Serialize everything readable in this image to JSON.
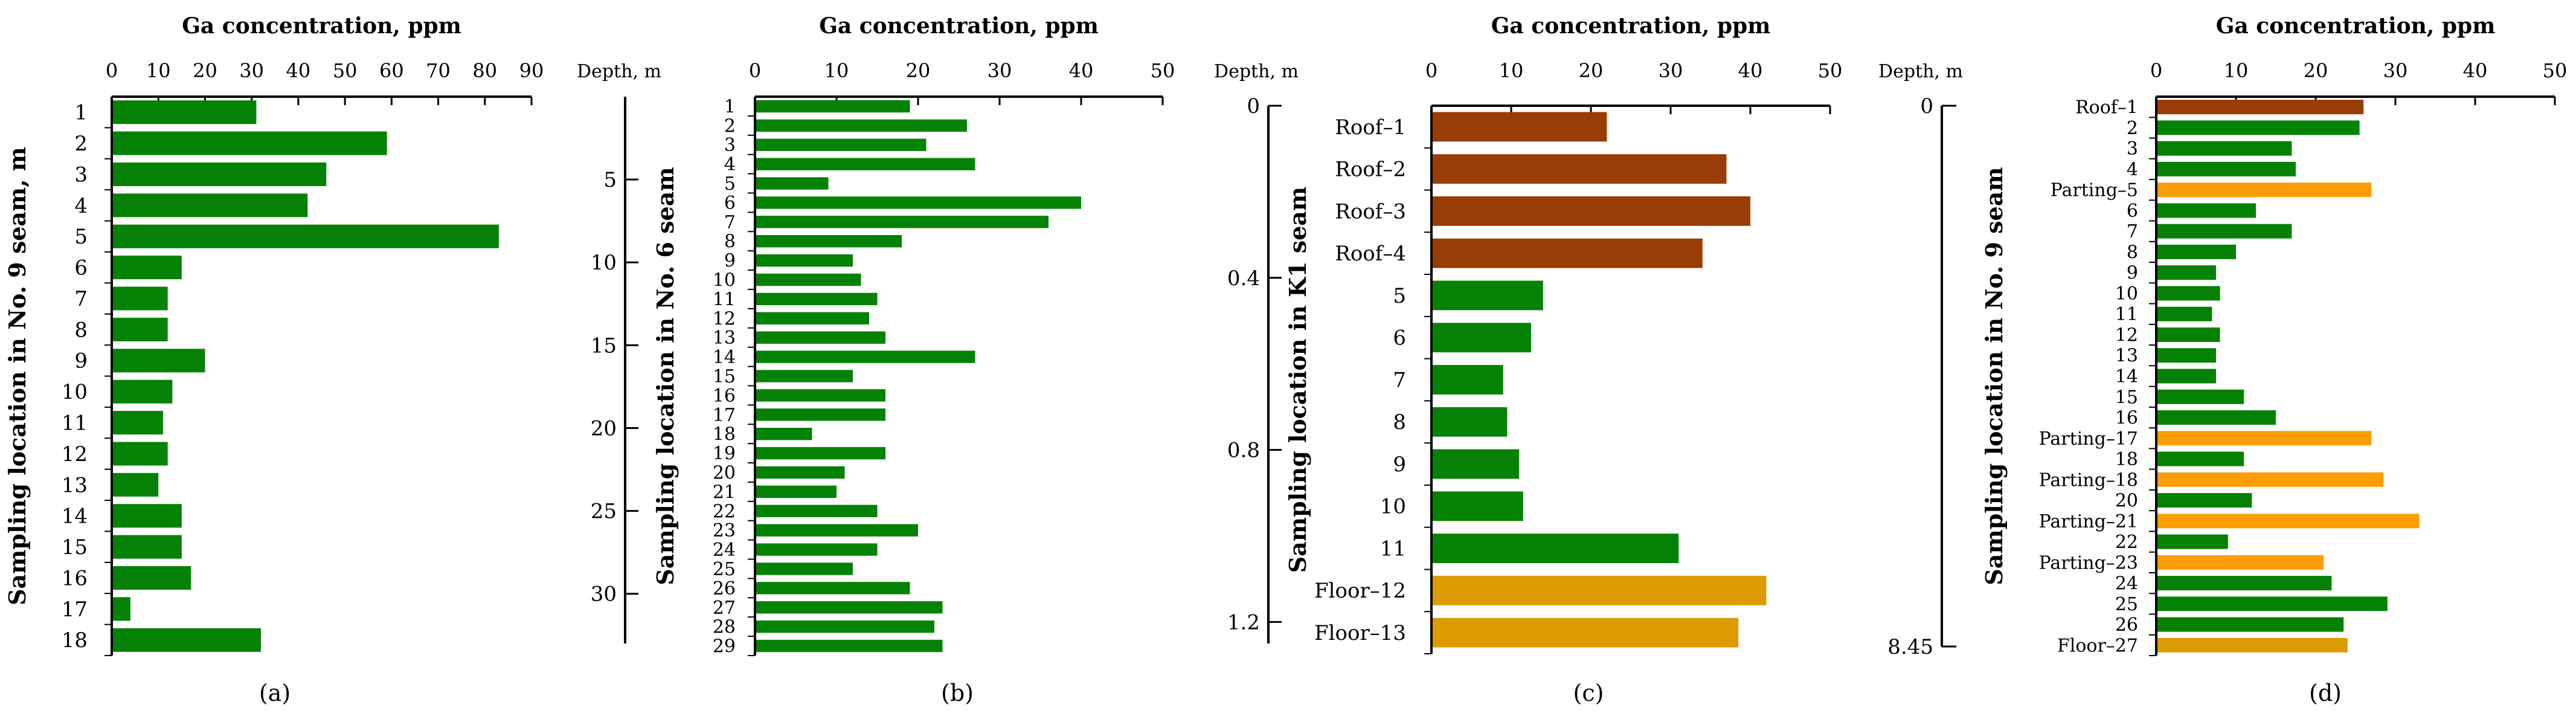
{
  "colors": {
    "green": "#058205",
    "brown": "#9a3c06",
    "gold": "#dc9b02",
    "orange": "#ff9d06",
    "axis": "#000000"
  },
  "chart_data": [
    {
      "panel": "a",
      "type": "bar",
      "orientation": "horizontal",
      "title": "Ga concentration, ppm",
      "xlabel": "Ga concentration, ppm",
      "ylabel": "Sampling location in No. 9 seam, m",
      "panel_label": "(a)",
      "xlim": [
        0,
        90
      ],
      "xticks": [
        0,
        10,
        20,
        30,
        40,
        50,
        60,
        70,
        80,
        90
      ],
      "categories": [
        "1",
        "2",
        "3",
        "4",
        "5",
        "6",
        "7",
        "8",
        "9",
        "10",
        "11",
        "12",
        "13",
        "14",
        "15",
        "16",
        "17",
        "18"
      ],
      "values": [
        31,
        59,
        46,
        42,
        83,
        15,
        12,
        12,
        20,
        13,
        11,
        12,
        10,
        15,
        15,
        17,
        4,
        32
      ],
      "colors": [
        "green",
        "green",
        "green",
        "green",
        "green",
        "green",
        "green",
        "green",
        "green",
        "green",
        "green",
        "green",
        "green",
        "green",
        "green",
        "green",
        "green",
        "green"
      ],
      "depth_axis": null
    },
    {
      "panel": "b",
      "type": "bar",
      "orientation": "horizontal",
      "title": "Ga concentration, ppm",
      "xlabel": "Ga concentration, ppm",
      "ylabel": "Sampling location in No. 6 seam",
      "panel_label": "(b)",
      "xlim": [
        0,
        50
      ],
      "xticks": [
        0,
        10,
        20,
        30,
        40,
        50
      ],
      "categories": [
        "1",
        "2",
        "3",
        "4",
        "5",
        "6",
        "7",
        "8",
        "9",
        "10",
        "11",
        "12",
        "13",
        "14",
        "15",
        "16",
        "17",
        "18",
        "19",
        "20",
        "21",
        "22",
        "23",
        "24",
        "25",
        "26",
        "27",
        "28",
        "29"
      ],
      "values": [
        19,
        26,
        21,
        27,
        9,
        40,
        36,
        18,
        12,
        13,
        15,
        14,
        16,
        27,
        12,
        16,
        16,
        7,
        16,
        11,
        10,
        15,
        20,
        15,
        12,
        19,
        23,
        22,
        23
      ],
      "colors": [
        "green",
        "green",
        "green",
        "green",
        "green",
        "green",
        "green",
        "green",
        "green",
        "green",
        "green",
        "green",
        "green",
        "green",
        "green",
        "green",
        "green",
        "green",
        "green",
        "green",
        "green",
        "green",
        "green",
        "green",
        "green",
        "green",
        "green",
        "green",
        "green"
      ],
      "depth_axis": {
        "title": "Depth, m",
        "range": [
          0,
          33
        ],
        "ticks": [
          {
            "label": "5",
            "value": 5
          },
          {
            "label": "10",
            "value": 10
          },
          {
            "label": "15",
            "value": 15
          },
          {
            "label": "20",
            "value": 20
          },
          {
            "label": "25",
            "value": 25
          },
          {
            "label": "30",
            "value": 30
          }
        ]
      }
    },
    {
      "panel": "c",
      "type": "bar",
      "orientation": "horizontal",
      "title": "Ga concentration, ppm",
      "xlabel": "Ga concentration, ppm",
      "ylabel": "Sampling location in K1 seam",
      "panel_label": "(c)",
      "xlim": [
        0,
        50
      ],
      "xticks": [
        0,
        10,
        20,
        30,
        40,
        50
      ],
      "categories": [
        "Roof–1",
        "Roof–2",
        "Roof–3",
        "Roof–4",
        "5",
        "6",
        "7",
        "8",
        "9",
        "10",
        "11",
        "Floor–12",
        "Floor–13"
      ],
      "values": [
        22,
        37,
        40,
        34,
        14,
        12.5,
        9,
        9.5,
        11,
        11.5,
        31,
        42,
        38.5
      ],
      "colors": [
        "brown",
        "brown",
        "brown",
        "brown",
        "green",
        "green",
        "green",
        "green",
        "green",
        "green",
        "green",
        "gold",
        "gold"
      ],
      "depth_axis": {
        "title": "Depth, m",
        "range": [
          0,
          1.25
        ],
        "ticks": [
          {
            "label": "0",
            "value": 0
          },
          {
            "label": "0.4",
            "value": 0.4
          },
          {
            "label": "0.8",
            "value": 0.8
          },
          {
            "label": "1.2",
            "value": 1.2
          }
        ]
      }
    },
    {
      "panel": "d",
      "type": "bar",
      "orientation": "horizontal",
      "title": "Ga concentration, ppm",
      "xlabel": "Ga concentration, ppm",
      "ylabel": "Sampling location in No. 9 seam",
      "panel_label": "(d)",
      "xlim": [
        0,
        50
      ],
      "xticks": [
        0,
        10,
        20,
        30,
        40,
        50
      ],
      "categories": [
        "Roof–1",
        "2",
        "3",
        "4",
        "Parting–5",
        "6",
        "7",
        "8",
        "9",
        "10",
        "11",
        "12",
        "13",
        "14",
        "15",
        "16",
        "Parting–17",
        "18",
        "Parting–18",
        "20",
        "Parting–21",
        "22",
        "Parting–23",
        "24",
        "25",
        "26",
        "Floor–27"
      ],
      "values": [
        26,
        25.5,
        17,
        17.5,
        27,
        12.5,
        17,
        10,
        7.5,
        8,
        7,
        8,
        7.5,
        7.5,
        11,
        15,
        27,
        11,
        28.5,
        12,
        33,
        9,
        21,
        22,
        29,
        23.5,
        24
      ],
      "colors": [
        "brown",
        "green",
        "green",
        "green",
        "orange",
        "green",
        "green",
        "green",
        "green",
        "green",
        "green",
        "green",
        "green",
        "green",
        "green",
        "green",
        "orange",
        "green",
        "orange",
        "green",
        "orange",
        "green",
        "orange",
        "green",
        "green",
        "green",
        "gold"
      ],
      "depth_axis": {
        "title": "Depth, m",
        "range": [
          0,
          8.45
        ],
        "ticks": [
          {
            "label": "0",
            "value": 0
          },
          {
            "label": "8.45",
            "value": 8.45
          }
        ]
      }
    }
  ]
}
